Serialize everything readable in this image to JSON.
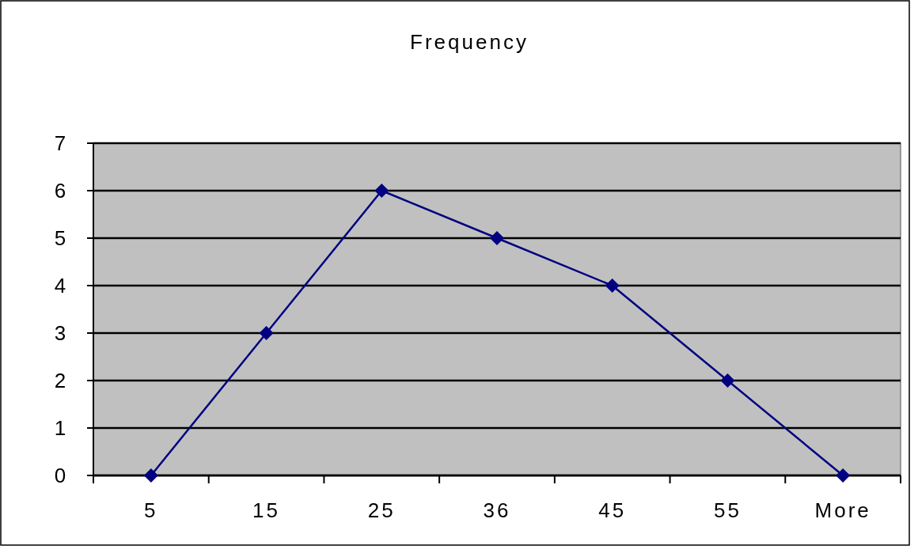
{
  "chart_data": {
    "type": "line",
    "title": "Frequency",
    "categories": [
      "5",
      "15",
      "25",
      "36",
      "45",
      "55",
      "More"
    ],
    "series": [
      {
        "color": "#000080",
        "values": [
          0,
          3,
          6,
          5,
          4,
          2,
          0
        ]
      }
    ],
    "ylim": [
      0,
      7
    ],
    "yticks": [
      0,
      1,
      2,
      3,
      4,
      5,
      6,
      7
    ],
    "grid": "y",
    "marker": "diamond",
    "line_style": "solid"
  }
}
